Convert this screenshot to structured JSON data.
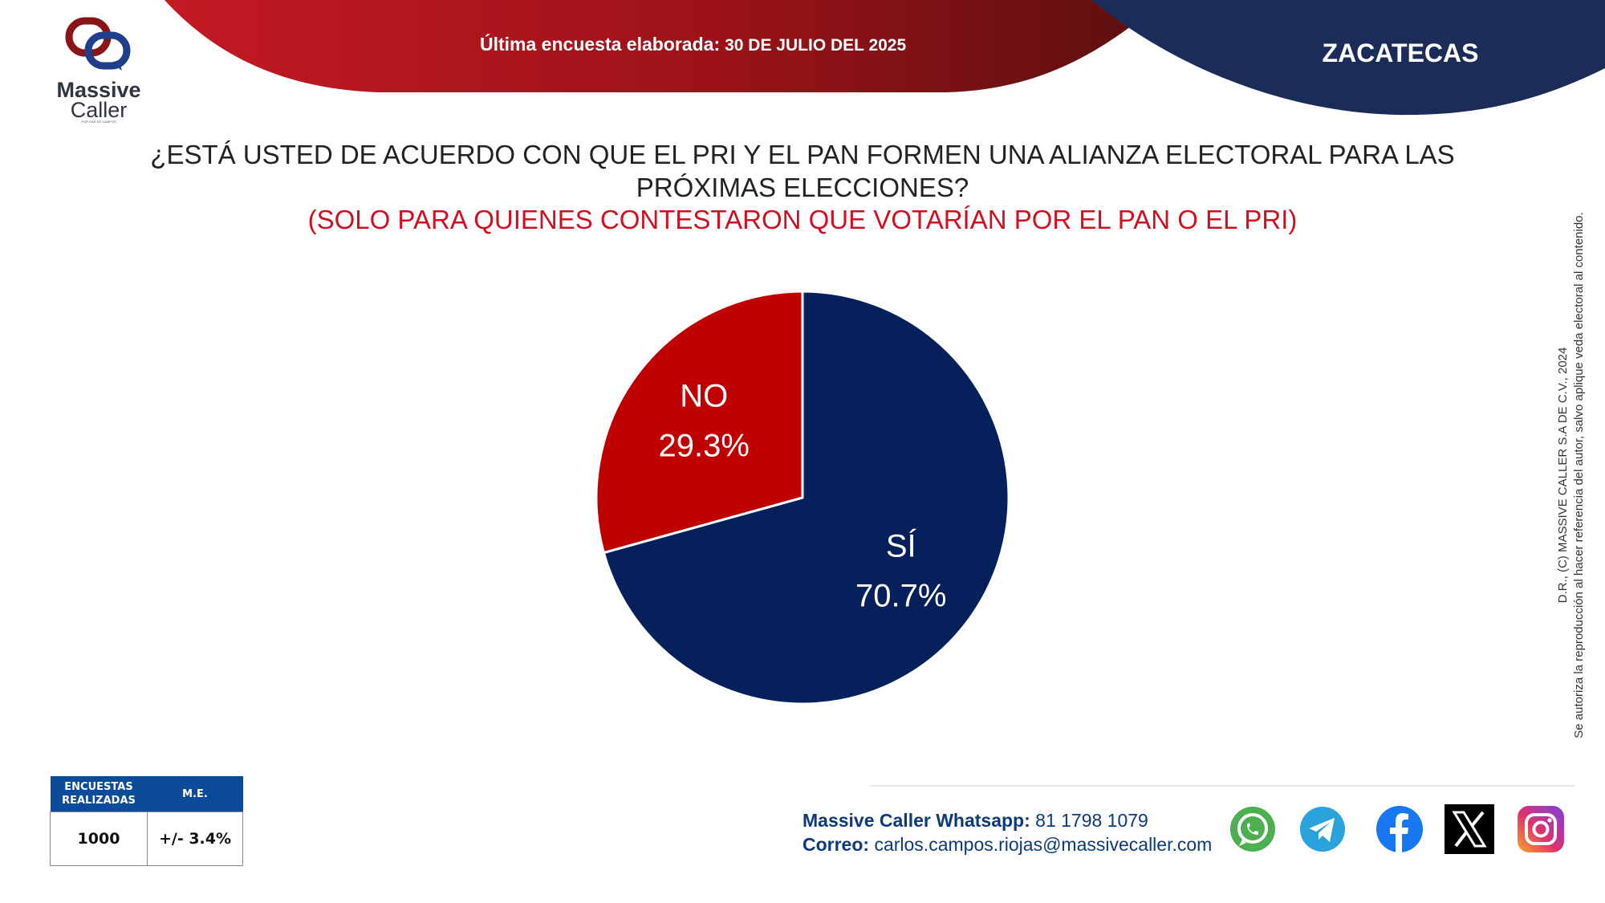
{
  "header": {
    "survey_label": "Última encuesta elaborada:",
    "survey_date": "30 DE JULIO DEL 2025",
    "state": "ZACATECAS"
  },
  "logo": {
    "line1": "Massive",
    "line2": "Caller",
    "tagline": "POR DAR DE CAMPOS"
  },
  "question": {
    "main": "¿ESTÁ USTED DE ACUERDO CON QUE EL PRI Y EL PAN FORMEN UNA ALIANZA ELECTORAL PARA LAS PRÓXIMAS ELECCIONES?",
    "subtitle": "(SOLO PARA QUIENES CONTESTARON QUE VOTARÍAN POR EL PAN O EL PRI)"
  },
  "chart_data": {
    "type": "pie",
    "title": "¿ESTÁ USTED DE ACUERDO CON QUE EL PRI Y EL PAN FORMEN UNA ALIANZA ELECTORAL PARA LAS PRÓXIMAS ELECCIONES?",
    "categories": [
      "SÍ",
      "NO"
    ],
    "values": [
      70.7,
      29.3
    ],
    "value_labels": [
      "70.7%",
      "29.3%"
    ],
    "colors": [
      "#06205c",
      "#c00000"
    ],
    "start": "12 o'clock",
    "direction": "clockwise"
  },
  "copyright": {
    "line1": "D.R., (C) MASSIVE CALLER S.A DE C.V., 2024",
    "line2": "Se autoriza la reproducción al hacer referencia del autor, salvo aplique veda electoral al contenido."
  },
  "stats": {
    "header_surveys": "ENCUESTAS REALIZADAS",
    "header_me": "M.E.",
    "surveys": "1000",
    "me": "+/- 3.4%"
  },
  "contact": {
    "whatsapp_label": "Massive Caller Whatsapp:",
    "whatsapp_number": "81 1798 1079",
    "email_label": "Correo:",
    "email": "carlos.campos.riojas@massivecaller.com"
  },
  "colors": {
    "brand_red": "#b0141e",
    "brand_navy": "#1c2c58",
    "accent_text": "#0c3a7a"
  },
  "social_icons": [
    "whatsapp-icon",
    "telegram-icon",
    "facebook-icon",
    "x-icon",
    "instagram-icon"
  ]
}
